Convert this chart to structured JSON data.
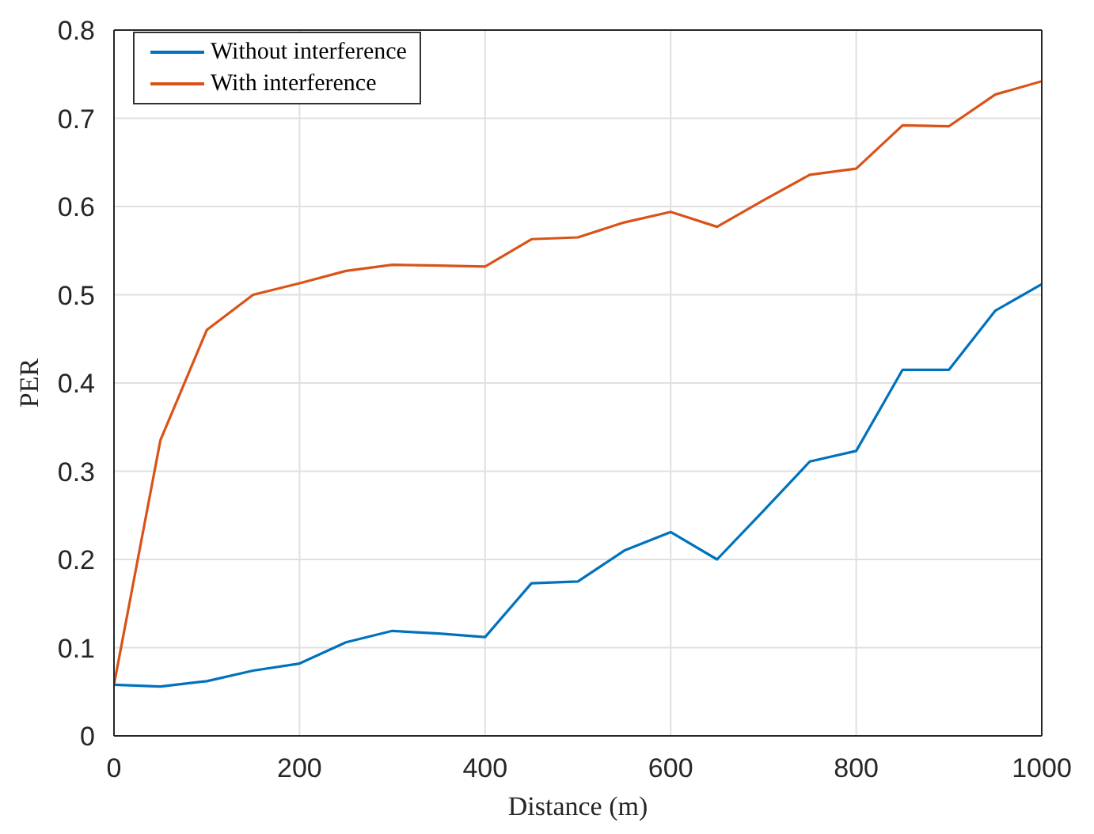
{
  "chart_data": {
    "type": "line",
    "xlabel": "Distance (m)",
    "ylabel": "PER",
    "x": [
      0,
      50,
      100,
      150,
      200,
      250,
      300,
      350,
      400,
      450,
      500,
      550,
      600,
      650,
      700,
      750,
      800,
      850,
      900,
      950,
      1000
    ],
    "series": [
      {
        "name": "Without interference",
        "color": "#0072bd",
        "values": [
          0.058,
          0.056,
          0.062,
          0.074,
          0.082,
          0.106,
          0.119,
          0.116,
          0.112,
          0.173,
          0.175,
          0.21,
          0.231,
          0.2,
          0.255,
          0.311,
          0.323,
          0.415,
          0.415,
          0.482,
          0.512
        ]
      },
      {
        "name": "With interference",
        "color": "#d95319",
        "values": [
          0.058,
          0.335,
          0.46,
          0.5,
          0.513,
          0.527,
          0.534,
          0.533,
          0.532,
          0.563,
          0.565,
          0.582,
          0.594,
          0.577,
          0.607,
          0.636,
          0.643,
          0.692,
          0.691,
          0.727,
          0.742
        ]
      }
    ],
    "xlim": [
      0,
      1000
    ],
    "xticks": [
      0,
      200,
      400,
      600,
      800,
      1000
    ],
    "ylim": [
      0,
      0.8
    ],
    "yticks": [
      0,
      0.1,
      0.2,
      0.3,
      0.4,
      0.5,
      0.6,
      0.7,
      0.8
    ],
    "grid": true,
    "legend": "top left",
    "line_style": "solid",
    "marker": "none"
  }
}
